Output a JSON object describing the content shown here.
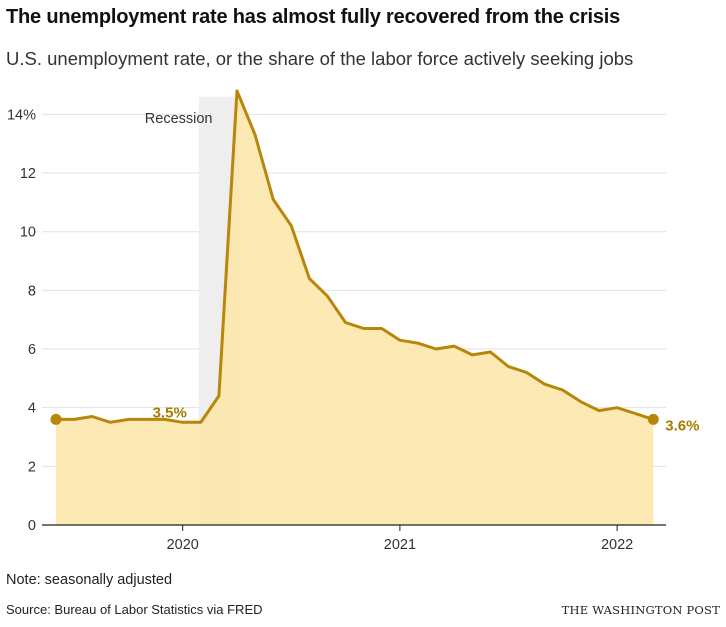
{
  "title": "The unemployment rate has almost fully recovered from the crisis",
  "subtitle": "U.S. unemployment rate, or the share of the labor force actively seeking jobs",
  "note": "Note: seasonally adjusted",
  "source": "Source: Bureau of Labor Statistics via FRED",
  "publisher": "THE WASHINGTON POST",
  "colors": {
    "line": "#b8860b",
    "fill": "#fde5a6",
    "recession": "#eeeeee",
    "grid": "#e2e2e2",
    "annotation": "#a67c00"
  },
  "chart_data": {
    "type": "area",
    "xlabel": "",
    "ylabel": "",
    "ylim": [
      0,
      15
    ],
    "xlim": [
      "2019-05",
      "2022-04"
    ],
    "y_ticks": [
      {
        "value": 0,
        "label": "0"
      },
      {
        "value": 2,
        "label": "2"
      },
      {
        "value": 4,
        "label": "4"
      },
      {
        "value": 6,
        "label": "6"
      },
      {
        "value": 8,
        "label": "8"
      },
      {
        "value": 10,
        "label": "10"
      },
      {
        "value": 12,
        "label": "12"
      },
      {
        "value": 14,
        "label": "14%"
      }
    ],
    "x_ticks": [
      {
        "value": "2020-01",
        "label": "2020"
      },
      {
        "value": "2021-01",
        "label": "2021"
      },
      {
        "value": "2022-01",
        "label": "2022"
      }
    ],
    "grid": "horizontal",
    "recession": {
      "start": "2020-02",
      "end": "2020-04",
      "label": "Recession"
    },
    "series": [
      {
        "x": [
          "2019-06",
          "2019-07",
          "2019-08",
          "2019-09",
          "2019-10",
          "2019-11",
          "2019-12",
          "2020-01",
          "2020-02",
          "2020-03",
          "2020-04",
          "2020-05",
          "2020-06",
          "2020-07",
          "2020-08",
          "2020-09",
          "2020-10",
          "2020-11",
          "2020-12",
          "2021-01",
          "2021-02",
          "2021-03",
          "2021-04",
          "2021-05",
          "2021-06",
          "2021-07",
          "2021-08",
          "2021-09",
          "2021-10",
          "2021-11",
          "2021-12",
          "2022-01",
          "2022-02",
          "2022-03"
        ],
        "values": [
          3.6,
          3.6,
          3.7,
          3.5,
          3.6,
          3.6,
          3.6,
          3.5,
          3.5,
          4.4,
          14.8,
          13.3,
          11.1,
          10.2,
          8.4,
          7.8,
          6.9,
          6.7,
          6.7,
          6.3,
          6.2,
          6.0,
          6.1,
          5.8,
          5.9,
          5.4,
          5.2,
          4.8,
          4.6,
          4.2,
          3.9,
          4.0,
          3.8,
          3.6
        ]
      }
    ],
    "annotations": [
      {
        "x": "2020-02",
        "value": 3.5,
        "label": "3.5%"
      },
      {
        "x": "2022-03",
        "value": 3.6,
        "label": "3.6%"
      }
    ]
  }
}
